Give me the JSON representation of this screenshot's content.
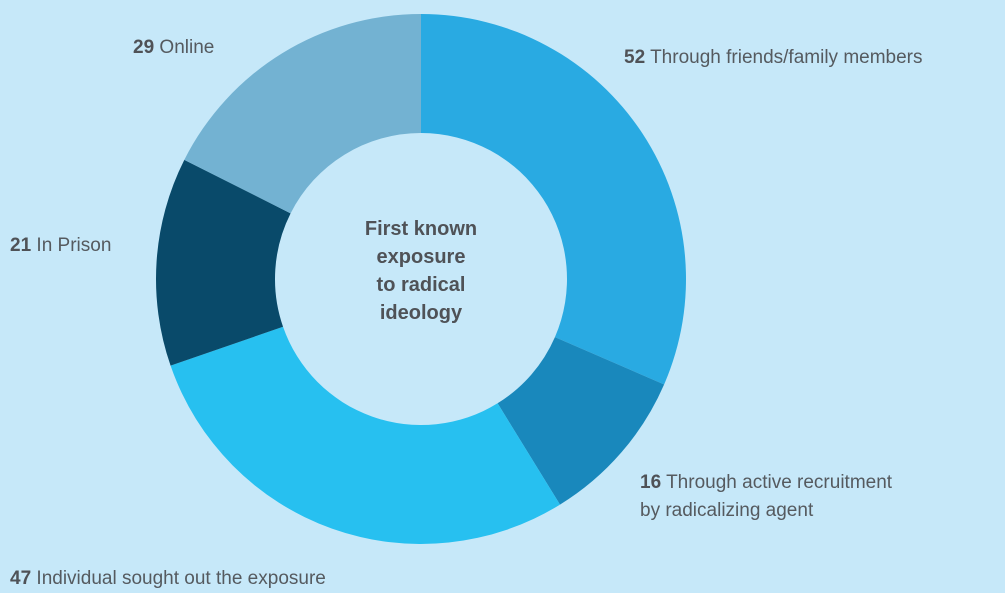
{
  "chart_data": {
    "type": "pie",
    "title": "First known\nexposure\nto radical\nideology",
    "slices": [
      {
        "value": 52,
        "label": "Through friends/family members",
        "color": "#29aae2"
      },
      {
        "value": 16,
        "label": "Through active recruitment\nby radicalizing agent",
        "color": "#1988bc"
      },
      {
        "value": 47,
        "label": "Individual sought out the exposure",
        "color": "#27c0f0"
      },
      {
        "value": 21,
        "label": "In Prison",
        "color": "#094a6a"
      },
      {
        "value": 29,
        "label": "Online",
        "color": "#73b2d2"
      }
    ]
  },
  "colors": {
    "background": "#c6e8f9",
    "text": "#555a5f"
  }
}
